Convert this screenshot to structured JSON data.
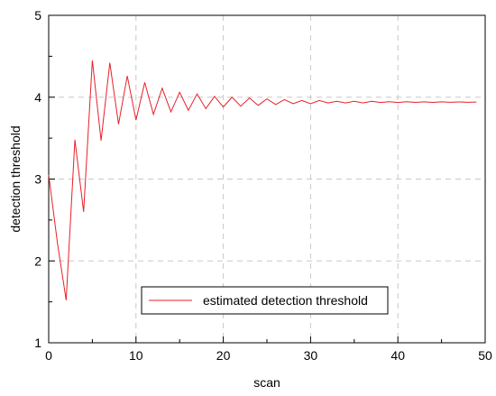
{
  "chart_data": {
    "type": "line",
    "title": "",
    "xlabel": "scan",
    "ylabel": "detection threshold",
    "xlim": [
      0,
      50
    ],
    "ylim": [
      1,
      5
    ],
    "x_ticks": [
      0,
      10,
      20,
      30,
      40,
      50
    ],
    "y_ticks": [
      1,
      2,
      3,
      4,
      5
    ],
    "grid": true,
    "legend_position": "bottom-center",
    "series": [
      {
        "name": "estimated detection threshold",
        "color": "#e8202a",
        "x": [
          0,
          1,
          2,
          3,
          4,
          5,
          6,
          7,
          8,
          9,
          10,
          11,
          12,
          13,
          14,
          15,
          16,
          17,
          18,
          19,
          20,
          21,
          22,
          23,
          24,
          25,
          26,
          27,
          28,
          29,
          30,
          31,
          32,
          33,
          34,
          35,
          36,
          37,
          38,
          39,
          40,
          41,
          42,
          43,
          44,
          45,
          46,
          47,
          48,
          49
        ],
        "values": [
          3.05,
          2.22,
          1.52,
          3.48,
          2.6,
          4.45,
          3.47,
          4.42,
          3.67,
          4.26,
          3.72,
          4.18,
          3.79,
          4.11,
          3.82,
          4.06,
          3.84,
          4.04,
          3.86,
          4.01,
          3.88,
          4.0,
          3.89,
          3.99,
          3.9,
          3.98,
          3.91,
          3.97,
          3.92,
          3.96,
          3.92,
          3.96,
          3.93,
          3.95,
          3.93,
          3.95,
          3.93,
          3.95,
          3.935,
          3.945,
          3.935,
          3.945,
          3.937,
          3.943,
          3.937,
          3.943,
          3.938,
          3.942,
          3.938,
          3.941
        ]
      }
    ]
  }
}
